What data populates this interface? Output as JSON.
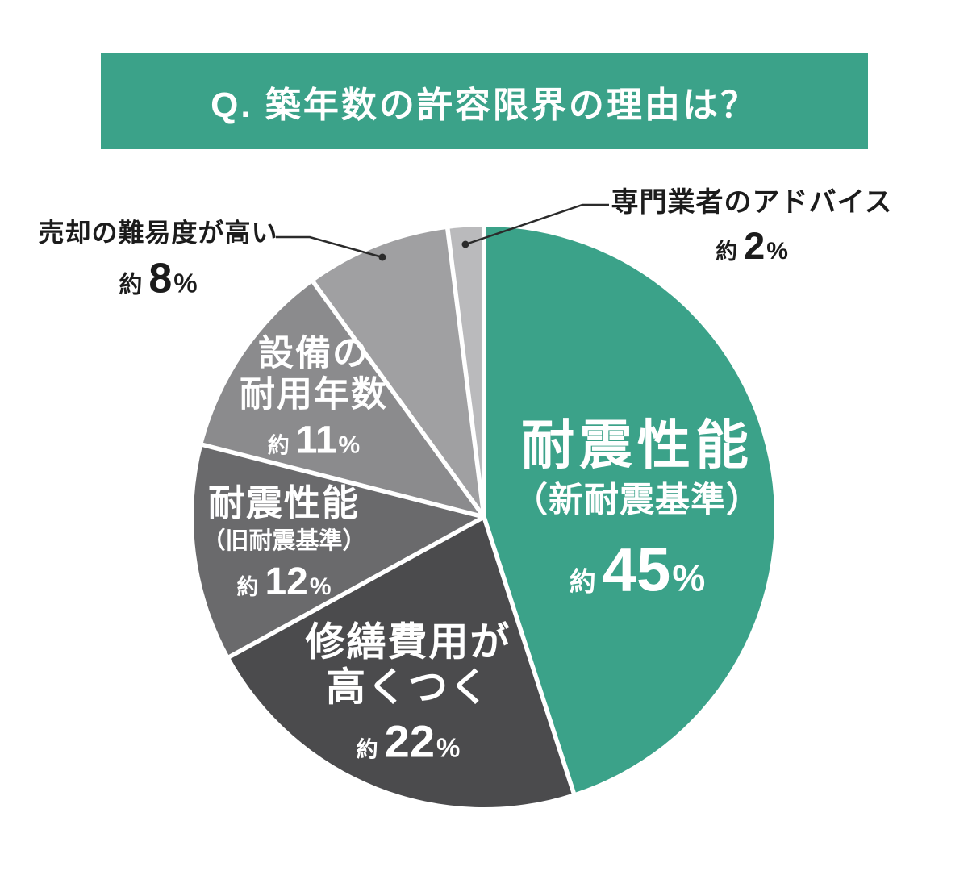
{
  "title": {
    "text": "Q. 築年数の許容限界の理由は？",
    "bg_color": "#3BA289",
    "text_color": "#ffffff"
  },
  "chart_data": {
    "type": "pie",
    "title": "Q. 築年数の許容限界の理由は？",
    "unit": "%",
    "approx_prefix": "約",
    "direction": "clockwise",
    "start_angle": "12-oclock",
    "legend_position": "labels-on-slices-and-callouts",
    "slices": [
      {
        "name": "耐震性能（新耐震基準）",
        "line1": "耐震性能",
        "line2": "（新耐震基準）",
        "value": 45,
        "color": "#3BA289",
        "label_style": "inside-white"
      },
      {
        "name": "修繕費用が高くつく",
        "line1": "修繕費用が",
        "line2": "高くつく",
        "value": 22,
        "color": "#4B4B4D",
        "label_style": "inside-white"
      },
      {
        "name": "耐震性能（旧耐震基準）",
        "line1": "耐震性能",
        "line2": "（旧耐震基準）",
        "value": 12,
        "color": "#6A6A6C",
        "label_style": "inside-white"
      },
      {
        "name": "設備の耐用年数",
        "line1": "設備の",
        "line2": "耐用年数",
        "value": 11,
        "color": "#8B8B8D",
        "label_style": "inside-white"
      },
      {
        "name": "売却の難易度が高い",
        "line1": "売却の難易度が高い",
        "value": 8,
        "color": "#A0A0A2",
        "label_style": "outside-dark"
      },
      {
        "name": "専門業者のアドバイス",
        "line1": "専門業者のアドバイス",
        "value": 2,
        "color": "#BABABC",
        "label_style": "outside-dark"
      }
    ],
    "callout_color": "#2b2b2b",
    "divider_color": "#ffffff"
  }
}
